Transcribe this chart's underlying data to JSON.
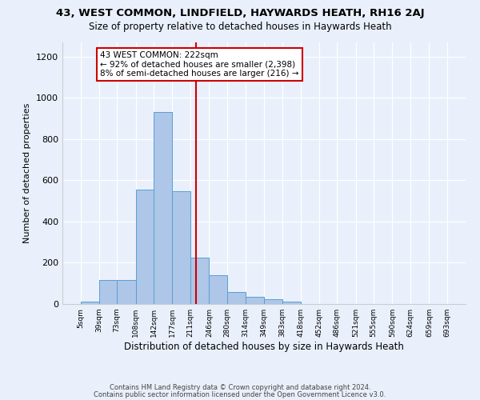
{
  "title": "43, WEST COMMON, LINDFIELD, HAYWARDS HEATH, RH16 2AJ",
  "subtitle": "Size of property relative to detached houses in Haywards Heath",
  "xlabel": "Distribution of detached houses by size in Haywards Heath",
  "ylabel": "Number of detached properties",
  "footer_line1": "Contains HM Land Registry data © Crown copyright and database right 2024.",
  "footer_line2": "Contains public sector information licensed under the Open Government Licence v3.0.",
  "bin_edges": [
    5,
    39,
    73,
    108,
    142,
    177,
    211,
    246,
    280,
    314,
    349,
    383,
    418,
    452,
    486,
    521,
    555,
    590,
    624,
    659,
    693
  ],
  "bin_labels": [
    "5sqm",
    "39sqm",
    "73sqm",
    "108sqm",
    "142sqm",
    "177sqm",
    "211sqm",
    "246sqm",
    "280sqm",
    "314sqm",
    "349sqm",
    "383sqm",
    "418sqm",
    "452sqm",
    "486sqm",
    "521sqm",
    "555sqm",
    "590sqm",
    "624sqm",
    "659sqm",
    "693sqm"
  ],
  "bar_heights": [
    10,
    115,
    115,
    555,
    930,
    545,
    225,
    140,
    60,
    35,
    25,
    10,
    0,
    0,
    0,
    0,
    0,
    0,
    0,
    0
  ],
  "bar_color": "#aec6e8",
  "bar_edge_color": "#5a9fd4",
  "background_color": "#eaf0fb",
  "grid_color": "#ffffff",
  "property_size": 222,
  "redline_color": "#cc0000",
  "annotation_text": "43 WEST COMMON: 222sqm\n← 92% of detached houses are smaller (2,398)\n8% of semi-detached houses are larger (216) →",
  "annotation_box_color": "#ffffff",
  "annotation_box_edge": "#cc0000",
  "ylim": [
    0,
    1270
  ],
  "yticks": [
    0,
    200,
    400,
    600,
    800,
    1000,
    1200
  ]
}
